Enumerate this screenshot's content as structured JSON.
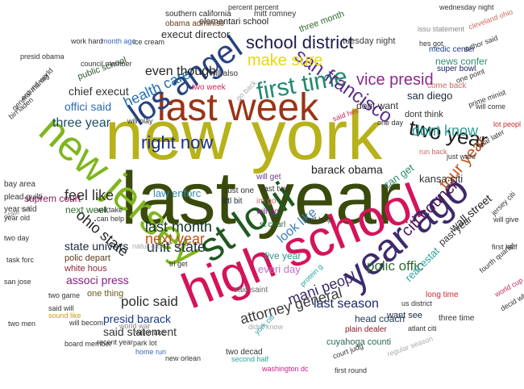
{
  "words": [
    {
      "text": "new york",
      "color": "#b7b21a",
      "weight": 1.0,
      "rot": 0
    },
    {
      "text": "last year",
      "color": "#3a4a0c",
      "weight": 0.95,
      "rot": 0
    },
    {
      "text": "high school",
      "color": "#d4145a",
      "weight": 0.78,
      "rot": -22
    },
    {
      "text": "new jersey",
      "color": "#7fb61e",
      "weight": 0.62,
      "rot": 42
    },
    {
      "text": "last week",
      "color": "#9b3316",
      "weight": 0.55,
      "rot": 0
    },
    {
      "text": "year ago",
      "color": "#3d2a6b",
      "weight": 0.5,
      "rot": -40
    },
    {
      "text": "st loui",
      "color": "#1f5a1f",
      "weight": 0.5,
      "rot": -35
    },
    {
      "text": "los angel",
      "color": "#27427e",
      "weight": 0.45,
      "rot": -35
    },
    {
      "text": "first time",
      "color": "#1f8a6e",
      "weight": 0.36,
      "rot": -10
    },
    {
      "text": "school district",
      "color": "#1c1c4a",
      "weight": 0.3,
      "rot": 0
    },
    {
      "text": "san francisco",
      "color": "#5b2e8c",
      "weight": 0.3,
      "rot": 35
    },
    {
      "text": "make sure",
      "color": "#e8d70c",
      "weight": 0.25,
      "rot": 0
    },
    {
      "text": "two year",
      "color": "#1a1a1a",
      "weight": 0.27,
      "rot": 10
    },
    {
      "text": "right now",
      "color": "#1b2f8a",
      "weight": 0.25,
      "rot": 0
    },
    {
      "text": "next year",
      "color": "#c2531b",
      "weight": 0.22,
      "rot": 0
    },
    {
      "text": "last month",
      "color": "#113322",
      "weight": 0.22,
      "rot": 0
    },
    {
      "text": "unit state",
      "color": "#223344",
      "weight": 0.22,
      "rot": 0
    },
    {
      "text": "barack obama",
      "color": "#222222",
      "weight": 0.2,
      "rot": 0
    },
    {
      "text": "three year",
      "color": "#1d4d63",
      "weight": 0.2,
      "rot": 0
    },
    {
      "text": "health care",
      "color": "#1f6fa8",
      "weight": 0.2,
      "rot": -25
    },
    {
      "text": "dont know",
      "color": "#2aa198",
      "weight": 0.2,
      "rot": 0
    },
    {
      "text": "polic offic",
      "color": "#2f6b2f",
      "weight": 0.2,
      "rot": 0
    },
    {
      "text": "polic said",
      "color": "#2b2b2b",
      "weight": 0.2,
      "rot": 0
    },
    {
      "text": "last season",
      "color": "#1a2a6c",
      "weight": 0.18,
      "rot": 0
    },
    {
      "text": "ohio state",
      "color": "#222222",
      "weight": 0.18,
      "rot": 40
    },
    {
      "text": "look like",
      "color": "#3a7fb6",
      "weight": 0.18,
      "rot": -40
    },
    {
      "text": "citi council",
      "color": "#4a1a5a",
      "weight": 0.18,
      "rot": -45
    },
    {
      "text": "four year",
      "color": "#c0531b",
      "weight": 0.18,
      "rot": -50
    },
    {
      "text": "mani peopl",
      "color": "#3a2a6a",
      "weight": 0.17,
      "rot": -20
    },
    {
      "text": "attorney general",
      "color": "#3a3a3a",
      "weight": 0.17,
      "rot": -15
    },
    {
      "text": "vice presid",
      "color": "#8a2a8a",
      "weight": 0.18,
      "rot": 0
    },
    {
      "text": "even though",
      "color": "#222222",
      "weight": 0.18,
      "rot": 0
    },
    {
      "text": "feel like",
      "color": "#333333",
      "weight": 0.17,
      "rot": 0
    },
    {
      "text": "chief execut",
      "color": "#333333",
      "weight": 0.16,
      "rot": 0
    },
    {
      "text": "state univers",
      "color": "#1a2a3a",
      "weight": 0.15,
      "rot": 0
    },
    {
      "text": "presid barack",
      "color": "#1a3a8a",
      "weight": 0.15,
      "rot": 0
    },
    {
      "text": "said statement",
      "color": "#333333",
      "weight": 0.15,
      "rot": 0
    },
    {
      "text": "associ press",
      "color": "#8a1a8a",
      "weight": 0.15,
      "rot": 0
    },
    {
      "text": "real estat",
      "color": "#2aa1a1",
      "weight": 0.15,
      "rot": -45
    },
    {
      "text": "law enforc",
      "color": "#2f8aa8",
      "weight": 0.14,
      "rot": 0
    },
    {
      "text": "can get",
      "color": "#2f8a6f",
      "weight": 0.14,
      "rot": -35
    },
    {
      "text": "everi day",
      "color": "#c46cc9",
      "weight": 0.14,
      "rot": 0
    },
    {
      "text": "five year",
      "color": "#2f9a8a",
      "weight": 0.12,
      "rot": 0
    },
    {
      "text": "offici said",
      "color": "#2d6bb2",
      "weight": 0.14,
      "rot": 0
    },
    {
      "text": "san diego",
      "color": "#1a2a3a",
      "weight": 0.14,
      "rot": 0
    },
    {
      "text": "execut director",
      "color": "#2a2a2a",
      "weight": 0.13,
      "rot": 0
    },
    {
      "text": "wall street",
      "color": "#222222",
      "weight": 0.13,
      "rot": -40
    },
    {
      "text": "kansa citi",
      "color": "#333333",
      "weight": 0.12,
      "rot": 0
    },
    {
      "text": "head coach",
      "color": "#1a3a5a",
      "weight": 0.12,
      "rot": 0
    },
    {
      "text": "cuyahoga counti",
      "color": "#2a6a5a",
      "weight": 0.11,
      "rot": 0
    },
    {
      "text": "news confer",
      "color": "#2f8a6f",
      "weight": 0.11,
      "rot": 0
    },
    {
      "text": "dont want",
      "color": "#333333",
      "weight": 0.11,
      "rot": 0
    },
    {
      "text": "next week",
      "color": "#2f6b2f",
      "weight": 0.11,
      "rot": 0
    },
    {
      "text": "polic depart",
      "color": "#5a3a1a",
      "weight": 0.1,
      "rot": 0
    },
    {
      "text": "white hous",
      "color": "#8a2a3a",
      "weight": 0.1,
      "rot": 0
    },
    {
      "text": "one thing",
      "color": "#6a5a1a",
      "weight": 0.1,
      "rot": 0
    },
    {
      "text": "public school",
      "color": "#2a5a2a",
      "weight": 0.1,
      "rot": -20
    },
    {
      "text": "suprem court",
      "color": "#8a1a5a",
      "weight": 0.1,
      "rot": 0
    },
    {
      "text": "want see",
      "color": "#1a2a3a",
      "weight": 0.1,
      "rot": 0
    },
    {
      "text": "past year",
      "color": "#333333",
      "weight": 0.1,
      "rot": -40
    },
    {
      "text": "tuesday night",
      "color": "#3a3a3a",
      "weight": 0.09,
      "rot": 0
    },
    {
      "text": "three month",
      "color": "#2f6b2f",
      "weight": 0.09,
      "rot": -20
    },
    {
      "text": "elementari school",
      "color": "#222222",
      "weight": 0.09,
      "rot": 0
    },
    {
      "text": "southern california",
      "color": "#2a2a2a",
      "weight": 0.08,
      "rot": 0
    },
    {
      "text": "mitt romney",
      "color": "#333333",
      "weight": 0.08,
      "rot": 0
    },
    {
      "text": "obama administr",
      "color": "#6a3a1a",
      "weight": 0.08,
      "rot": 0
    },
    {
      "text": "dont think",
      "color": "#333333",
      "weight": 0.09,
      "rot": 0
    },
    {
      "text": "come back",
      "color": "#c66",
      "weight": 0.08,
      "rot": 0
    },
    {
      "text": "super bowl",
      "color": "#1a1a6a",
      "weight": 0.08,
      "rot": 0
    },
    {
      "text": "medic center",
      "color": "#1a3a8a",
      "weight": 0.08,
      "rot": 0
    },
    {
      "text": "just one",
      "color": "#333333",
      "weight": 0.08,
      "rot": 0
    },
    {
      "text": "last two",
      "color": "#333333",
      "weight": 0.08,
      "rot": 0
    },
    {
      "text": "littl bit",
      "color": "#1a2a3a",
      "weight": 0.08,
      "rot": 0
    },
    {
      "text": "will get",
      "color": "#6a3a8a",
      "weight": 0.08,
      "rot": 0
    },
    {
      "text": "will go",
      "color": "#8a1a8a",
      "weight": 0.07,
      "rot": 0
    },
    {
      "text": "st charl",
      "color": "#2a6a3a",
      "weight": 0.07,
      "rot": 0
    },
    {
      "text": "im go",
      "color": "#c66",
      "weight": 0.07,
      "rot": 0
    },
    {
      "text": "said saint",
      "color": "#6a6a6a",
      "weight": 0.07,
      "rot": 0
    },
    {
      "text": "two decad",
      "color": "#333333",
      "weight": 0.07,
      "rot": 0
    },
    {
      "text": "plain dealer",
      "color": "#8a1a2a",
      "weight": 0.07,
      "rot": 0
    },
    {
      "text": "three time",
      "color": "#333333",
      "weight": 0.07,
      "rot": 0
    },
    {
      "text": "long time",
      "color": "#cc2a2a",
      "weight": 0.07,
      "rot": 0
    },
    {
      "text": "two week",
      "color": "#cc2a5a",
      "weight": 0.07,
      "rot": 0
    },
    {
      "text": "will also",
      "color": "#333333",
      "weight": 0.07,
      "rot": 0
    },
    {
      "text": "year said",
      "color": "#333333",
      "weight": 0.07,
      "rot": 0
    },
    {
      "text": "bay area",
      "color": "#333333",
      "weight": 0.07,
      "rot": 0
    },
    {
      "text": "plead guilti",
      "color": "#333333",
      "weight": 0.07,
      "rot": 0
    },
    {
      "text": "state law",
      "color": "#888888",
      "weight": 0.06,
      "rot": -20
    },
    {
      "text": "year old",
      "color": "#333333",
      "weight": 0.06,
      "rot": 0
    },
    {
      "text": "san jose",
      "color": "#333333",
      "weight": 0.06,
      "rot": 0
    },
    {
      "text": "two game",
      "color": "#333333",
      "weight": 0.06,
      "rot": 0
    },
    {
      "text": "said will",
      "color": "#333333",
      "weight": 0.06,
      "rot": 0
    },
    {
      "text": "will becom",
      "color": "#333333",
      "weight": 0.06,
      "rot": 0
    },
    {
      "text": "recent year",
      "color": "#333333",
      "weight": 0.06,
      "rot": 0
    },
    {
      "text": "will make",
      "color": "#333333",
      "weight": 0.06,
      "rot": 0
    },
    {
      "text": "park lot",
      "color": "#333333",
      "weight": 0.06,
      "rot": 0
    },
    {
      "text": "new orlean",
      "color": "#333333",
      "weight": 0.06,
      "rot": 0
    },
    {
      "text": "second half",
      "color": "#2aa1a1",
      "weight": 0.06,
      "rot": 0
    },
    {
      "text": "washington dc",
      "color": "#cc1a8a",
      "weight": 0.06,
      "rot": 0
    },
    {
      "text": "first round",
      "color": "#333333",
      "weight": 0.05,
      "rot": 0
    },
    {
      "text": "court judg",
      "color": "#333333",
      "weight": 0.05,
      "rot": -20
    },
    {
      "text": "atlant citi",
      "color": "#333333",
      "weight": 0.05,
      "rot": 0
    },
    {
      "text": "us district",
      "color": "#333333",
      "weight": 0.05,
      "rot": 0
    },
    {
      "text": "fourth quarter",
      "color": "#333333",
      "weight": 0.05,
      "rot": -40
    },
    {
      "text": "first half",
      "color": "#333333",
      "weight": 0.05,
      "rot": 0
    },
    {
      "text": "will give",
      "color": "#333333",
      "weight": 0.05,
      "rot": 0
    },
    {
      "text": "jersey citi",
      "color": "#333333",
      "weight": 0.05,
      "rot": -45
    },
    {
      "text": "lot peopl",
      "color": "#cc2a2a",
      "weight": 0.05,
      "rot": 0
    },
    {
      "text": "year later",
      "color": "#333333",
      "weight": 0.05,
      "rot": -30
    },
    {
      "text": "just want",
      "color": "#333333",
      "weight": 0.05,
      "rot": 0
    },
    {
      "text": "run back",
      "color": "#c66",
      "weight": 0.05,
      "rot": 0
    },
    {
      "text": "one day",
      "color": "#333333",
      "weight": 0.05,
      "rot": 0
    },
    {
      "text": "said hes",
      "color": "#cc2a5a",
      "weight": 0.05,
      "rot": -20
    },
    {
      "text": "go back",
      "color": "#aaaaaa",
      "weight": 0.05,
      "rot": -45
    },
    {
      "text": "will come",
      "color": "#333333",
      "weight": 0.05,
      "rot": 0
    },
    {
      "text": "prime minist",
      "color": "#333333",
      "weight": 0.05,
      "rot": -20
    },
    {
      "text": "one point",
      "color": "#333333",
      "weight": 0.05,
      "rot": -20
    },
    {
      "text": "author said",
      "color": "#333333",
      "weight": 0.05,
      "rot": -20
    },
    {
      "text": "issu statement",
      "color": "#888888",
      "weight": 0.05,
      "rot": 0
    },
    {
      "text": "hes got",
      "color": "#333333",
      "weight": 0.05,
      "rot": 0
    },
    {
      "text": "cleveland ohio",
      "color": "#cc6a5a",
      "weight": 0.05,
      "rot": -20
    },
    {
      "text": "percent percent",
      "color": "#333333",
      "weight": 0.05,
      "rot": 0
    },
    {
      "text": "wednesday night",
      "color": "#333333",
      "weight": 0.05,
      "rot": 0
    },
    {
      "text": "ice cream",
      "color": "#333333",
      "weight": 0.05,
      "rot": 0
    },
    {
      "text": "month ago",
      "color": "#3a6ab6",
      "weight": 0.05,
      "rot": 0
    },
    {
      "text": "work hard",
      "color": "#333333",
      "weight": 0.05,
      "rot": 0
    },
    {
      "text": "presid obama",
      "color": "#333333",
      "weight": 0.05,
      "rot": 0
    },
    {
      "text": "council member",
      "color": "#333333",
      "weight": 0.05,
      "rot": 0
    },
    {
      "text": "general manag",
      "color": "#333333",
      "weight": 0.05,
      "rot": -45
    },
    {
      "text": "around world",
      "color": "#333333",
      "weight": 0.05,
      "rot": -45
    },
    {
      "text": "bin laden",
      "color": "#333333",
      "weight": 0.05,
      "rot": -40
    },
    {
      "text": "will take",
      "color": "#333333",
      "weight": 0.05,
      "rot": 0
    },
    {
      "text": "can help",
      "color": "#333333",
      "weight": 0.05,
      "rot": 0
    },
    {
      "text": "will play",
      "color": "#333333",
      "weight": 0.05,
      "rot": 0
    },
    {
      "text": "two day",
      "color": "#333333",
      "weight": 0.05,
      "rot": 0
    },
    {
      "text": "task forc",
      "color": "#333333",
      "weight": 0.05,
      "rot": 0
    },
    {
      "text": "two men",
      "color": "#333333",
      "weight": 0.05,
      "rot": 0
    },
    {
      "text": "sound like",
      "color": "#cc9a1a",
      "weight": 0.05,
      "rot": 0
    },
    {
      "text": "board member",
      "color": "#333333",
      "weight": 0.05,
      "rot": 0
    },
    {
      "text": "world war",
      "color": "#888888",
      "weight": 0.05,
      "rot": 0
    },
    {
      "text": "home run",
      "color": "#3a6ab6",
      "weight": 0.05,
      "rot": 0
    },
    {
      "text": "natur gas",
      "color": "#aaaaaa",
      "weight": 0.05,
      "rot": 0
    },
    {
      "text": "tri get",
      "color": "#333333",
      "weight": 0.05,
      "rot": 0
    },
    {
      "text": "didnt know",
      "color": "#aaaaaa",
      "weight": 0.05,
      "rot": 0
    },
    {
      "text": "protein g",
      "color": "#2aa1a1",
      "weight": 0.05,
      "rot": -45
    },
    {
      "text": "york citi",
      "color": "#2aa1a1",
      "weight": 0.05,
      "rot": -45
    },
    {
      "text": "will help",
      "color": "#333333",
      "weight": 0.05,
      "rot": 0
    },
    {
      "text": "regular season",
      "color": "#aaaaaa",
      "weight": 0.05,
      "rot": -20
    },
    {
      "text": "world cup",
      "color": "#cc2a5a",
      "weight": 0.05,
      "rot": -30
    },
    {
      "text": "decid whether",
      "color": "#333333",
      "weight": 0.05,
      "rot": -30
    }
  ]
}
